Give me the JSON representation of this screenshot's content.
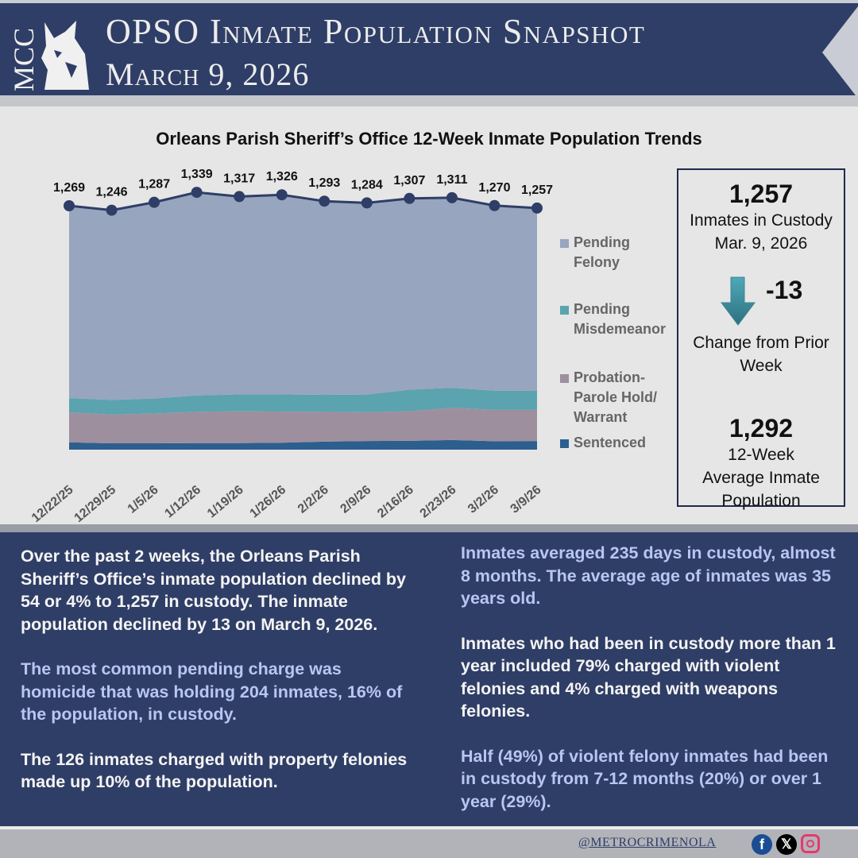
{
  "header": {
    "logo_text": "MCC",
    "title": "OPSO Inmate Population Snapshot",
    "subtitle": "March 9, 2026"
  },
  "chart_data": {
    "type": "area",
    "stacked": true,
    "title": "Orleans Parish Sheriff’s Office 12-Week Inmate Population Trends",
    "categories": [
      "12/22/25",
      "12/29/25",
      "1/5/26",
      "1/12/26",
      "1/19/26",
      "1/26/26",
      "2/2/26",
      "2/9/26",
      "2/16/26",
      "2/23/26",
      "3/2/26",
      "3/9/26"
    ],
    "totals": [
      1269,
      1246,
      1287,
      1339,
      1317,
      1326,
      1293,
      1284,
      1307,
      1311,
      1270,
      1257
    ],
    "total_labels": [
      "1,269",
      "1,246",
      "1,287",
      "1,339",
      "1,317",
      "1,326",
      "1,293",
      "1,284",
      "1,307",
      "1,311",
      "1,270",
      "1,257"
    ],
    "series": [
      {
        "name": "Sentenced",
        "color": "#2c5f8e",
        "values": [
          38,
          33,
          33,
          34,
          34,
          36,
          42,
          45,
          46,
          50,
          44,
          45
        ]
      },
      {
        "name": "Probation-Parole Hold/ Warrant",
        "color": "#9e8f9f",
        "values": [
          156,
          150,
          155,
          163,
          166,
          162,
          155,
          150,
          154,
          168,
          163,
          162
        ]
      },
      {
        "name": "Pending Misdemeanor",
        "color": "#5ba3ae",
        "values": [
          74,
          76,
          78,
          85,
          88,
          90,
          88,
          92,
          112,
          104,
          100,
          99
        ]
      },
      {
        "name": "Pending Felony",
        "color": "#98a5bf",
        "values": [
          1001,
          987,
          1021,
          1057,
          1029,
          1038,
          1008,
          997,
          995,
          989,
          963,
          951
        ]
      }
    ],
    "legend": [
      "Pending Felony",
      "Pending Misdemeanor",
      "Probation-Parole Hold/ Warrant",
      "Sentenced"
    ],
    "legend_placement": "right",
    "line_color": "#2f3e66",
    "grid": false,
    "ylim": [
      0,
      1400
    ]
  },
  "stats": {
    "custody_value": "1,257",
    "custody_label": "Inmates in Custody",
    "custody_date": "Mar. 9, 2026",
    "change_value": "-13",
    "change_label": "Change from Prior Week",
    "change_icon": "down-arrow-icon",
    "avg_value": "1,292",
    "avg_label": "12-Week Average Inmate Population"
  },
  "text": {
    "left": [
      "Over the past 2 weeks, the Orleans Parish Sheriff’s Office’s inmate population declined by 54 or 4% to 1,257 in custody. The inmate population declined by 13 on March 9, 2026.",
      "The most common pending charge was homicide that was holding 204 inmates, 16% of the population, in custody.",
      "The 126 inmates charged with property felonies made up 10% of the population."
    ],
    "right": [
      "Inmates averaged 235 days in custody, almost 8 months. The average age of inmates was 35 years old.",
      "Inmates who had been in custody more than 1 year included 79% charged with violent felonies and 4% charged with weapons felonies.",
      "Half (49%) of violent felony inmates had been in custody from 7-12 months (20%) or over 1 year (29%)."
    ]
  },
  "footer": {
    "handle": "@METROCRIMENOLA",
    "social": [
      "facebook-icon",
      "x-icon",
      "instagram-icon"
    ]
  }
}
